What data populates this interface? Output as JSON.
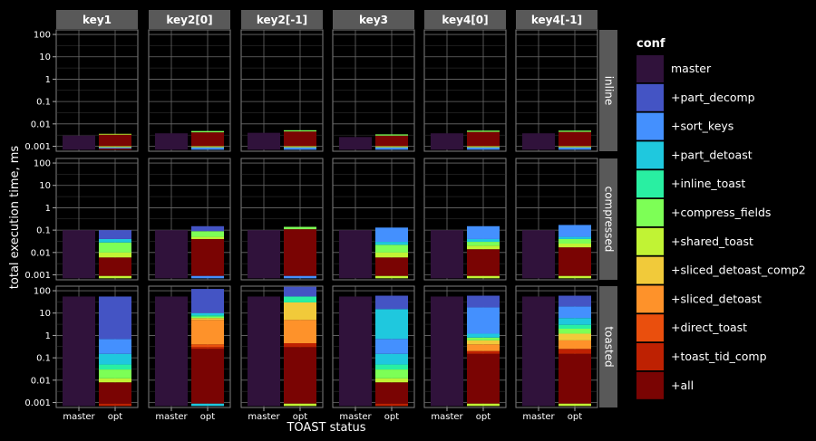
{
  "chart_data": {
    "type": "bar",
    "stacked": true,
    "y_scale": "log10",
    "ylim": [
      0.0006,
      160
    ],
    "ylabel": "total execution time, ms",
    "xlabel": "TOAST status",
    "x_categories": [
      "master",
      "opt"
    ],
    "y_ticks": [
      {
        "value": 100,
        "label": "100"
      },
      {
        "value": 10,
        "label": "10"
      },
      {
        "value": 1,
        "label": "1"
      },
      {
        "value": 0.1,
        "label": "0.1"
      },
      {
        "value": 0.01,
        "label": "0.01"
      },
      {
        "value": 0.001,
        "label": "0.001"
      }
    ],
    "columns": [
      "key1",
      "key2[0]",
      "key2[-1]",
      "key3",
      "key4[0]",
      "key4[-1]"
    ],
    "rows": [
      "inline",
      "compressed",
      "toasted"
    ],
    "legend": {
      "title": "conf",
      "position": "right",
      "items": [
        {
          "name": "master",
          "color": "#30123b"
        },
        {
          "name": "+part_decomp",
          "color": "#4454c4"
        },
        {
          "name": "+sort_keys",
          "color": "#4490fe"
        },
        {
          "name": "+part_detoast",
          "color": "#1fc8de"
        },
        {
          "name": "+inline_toast",
          "color": "#29efa2"
        },
        {
          "name": "+compress_fields",
          "color": "#7dff56"
        },
        {
          "name": "+shared_toast",
          "color": "#c1f334"
        },
        {
          "name": "+sliced_detoast_comp2",
          "color": "#f1ca3a"
        },
        {
          "name": "+sliced_detoast",
          "color": "#fe922a"
        },
        {
          "name": "+direct_toast",
          "color": "#ea4f0d"
        },
        {
          "name": "+toast_tid_comp",
          "color": "#be2102"
        },
        {
          "name": "+all",
          "color": "#7a0403"
        }
      ]
    },
    "base_value": 0.0007,
    "panels": [
      {
        "row": "inline",
        "col": "key1",
        "master_top": 0.003,
        "opt_segments": [
          [
            "+all",
            0.0008
          ],
          [
            "+sort_keys",
            0.0009
          ],
          [
            "+shared_toast",
            0.001
          ],
          [
            "+all",
            0.0033
          ],
          [
            "+shared_toast",
            0.0036
          ]
        ]
      },
      {
        "row": "inline",
        "col": "key2[0]",
        "master_top": 0.0038,
        "opt_segments": [
          [
            "+sort_keys",
            0.0009
          ],
          [
            "+shared_toast",
            0.001
          ],
          [
            "+all",
            0.0042
          ],
          [
            "+compress_fields",
            0.0048
          ]
        ]
      },
      {
        "row": "inline",
        "col": "key2[-1]",
        "master_top": 0.004,
        "opt_segments": [
          [
            "+sort_keys",
            0.0009
          ],
          [
            "+shared_toast",
            0.001
          ],
          [
            "+all",
            0.0046
          ],
          [
            "+compress_fields",
            0.0052
          ]
        ]
      },
      {
        "row": "inline",
        "col": "key3",
        "master_top": 0.0026,
        "opt_segments": [
          [
            "+sort_keys",
            0.0009
          ],
          [
            "+shared_toast",
            0.001
          ],
          [
            "+all",
            0.003
          ],
          [
            "+compress_fields",
            0.0034
          ]
        ]
      },
      {
        "row": "inline",
        "col": "key4[0]",
        "master_top": 0.0038,
        "opt_segments": [
          [
            "+sort_keys",
            0.0009
          ],
          [
            "+shared_toast",
            0.001
          ],
          [
            "+all",
            0.0044
          ],
          [
            "+compress_fields",
            0.005
          ]
        ]
      },
      {
        "row": "inline",
        "col": "key4[-1]",
        "master_top": 0.0038,
        "opt_segments": [
          [
            "+sort_keys",
            0.0009
          ],
          [
            "+shared_toast",
            0.001
          ],
          [
            "+all",
            0.0044
          ],
          [
            "+compress_fields",
            0.005
          ]
        ]
      },
      {
        "row": "compressed",
        "col": "key1",
        "master_top": 0.1,
        "opt_segments": [
          [
            "+shared_toast",
            0.0009
          ],
          [
            "+all",
            0.006
          ],
          [
            "+shared_toast",
            0.01
          ],
          [
            "+compress_fields",
            0.028
          ],
          [
            "+part_detoast",
            0.04
          ],
          [
            "+part_decomp",
            0.1
          ]
        ]
      },
      {
        "row": "compressed",
        "col": "key2[0]",
        "master_top": 0.1,
        "opt_segments": [
          [
            "+sort_keys",
            0.0009
          ],
          [
            "+all",
            0.04
          ],
          [
            "+shared_toast",
            0.05
          ],
          [
            "+compress_fields",
            0.09
          ],
          [
            "+part_decomp",
            0.15
          ]
        ]
      },
      {
        "row": "compressed",
        "col": "key2[-1]",
        "master_top": 0.1,
        "opt_segments": [
          [
            "+sort_keys",
            0.0009
          ],
          [
            "+all",
            0.11
          ],
          [
            "+compress_fields",
            0.14
          ]
        ]
      },
      {
        "row": "compressed",
        "col": "key3",
        "master_top": 0.1,
        "opt_segments": [
          [
            "+shared_toast",
            0.0009
          ],
          [
            "+all",
            0.006
          ],
          [
            "+shared_toast",
            0.01
          ],
          [
            "+compress_fields",
            0.022
          ],
          [
            "+part_detoast",
            0.03
          ],
          [
            "+sort_keys",
            0.13
          ]
        ]
      },
      {
        "row": "compressed",
        "col": "key4[0]",
        "master_top": 0.1,
        "opt_segments": [
          [
            "+shared_toast",
            0.0009
          ],
          [
            "+all",
            0.014
          ],
          [
            "+shared_toast",
            0.02
          ],
          [
            "+compress_fields",
            0.03
          ],
          [
            "+part_detoast",
            0.04
          ],
          [
            "+sort_keys",
            0.15
          ]
        ]
      },
      {
        "row": "compressed",
        "col": "key4[-1]",
        "master_top": 0.1,
        "opt_segments": [
          [
            "+shared_toast",
            0.0009
          ],
          [
            "+all",
            0.017
          ],
          [
            "+shared_toast",
            0.025
          ],
          [
            "+compress_fields",
            0.04
          ],
          [
            "+part_detoast",
            0.05
          ],
          [
            "+sort_keys",
            0.17
          ]
        ]
      },
      {
        "row": "toasted",
        "col": "key1",
        "master_top": 55,
        "opt_segments": [
          [
            "+toast_tid_comp",
            0.0009
          ],
          [
            "+all",
            0.008
          ],
          [
            "+shared_toast",
            0.012
          ],
          [
            "+compress_fields",
            0.03
          ],
          [
            "+inline_toast",
            0.05
          ],
          [
            "+part_detoast",
            0.15
          ],
          [
            "+sort_keys",
            0.7
          ],
          [
            "+part_decomp",
            55
          ]
        ]
      },
      {
        "row": "toasted",
        "col": "key2[0]",
        "master_top": 55,
        "opt_segments": [
          [
            "+part_detoast",
            0.0009
          ],
          [
            "+all",
            0.25
          ],
          [
            "+toast_tid_comp",
            0.3
          ],
          [
            "+direct_toast",
            0.4
          ],
          [
            "+sliced_detoast",
            5
          ],
          [
            "+sliced_detoast_comp2",
            6
          ],
          [
            "+compress_fields",
            7
          ],
          [
            "+inline_toast",
            8
          ],
          [
            "+part_detoast",
            10
          ],
          [
            "+part_decomp",
            120
          ]
        ]
      },
      {
        "row": "toasted",
        "col": "key2[-1]",
        "master_top": 55,
        "opt_segments": [
          [
            "+shared_toast",
            0.0009
          ],
          [
            "+all",
            0.3
          ],
          [
            "+toast_tid_comp",
            0.45
          ],
          [
            "+sliced_detoast",
            5
          ],
          [
            "+sliced_detoast_comp2",
            30
          ],
          [
            "+inline_toast",
            55
          ],
          [
            "+part_decomp",
            150
          ]
        ]
      },
      {
        "row": "toasted",
        "col": "key3",
        "master_top": 55,
        "opt_segments": [
          [
            "+toast_tid_comp",
            0.0009
          ],
          [
            "+all",
            0.008
          ],
          [
            "+shared_toast",
            0.012
          ],
          [
            "+compress_fields",
            0.03
          ],
          [
            "+inline_toast",
            0.05
          ],
          [
            "+part_detoast",
            0.15
          ],
          [
            "+sort_keys",
            0.7
          ],
          [
            "+part_detoast",
            15
          ],
          [
            "+part_decomp",
            60
          ]
        ]
      },
      {
        "row": "toasted",
        "col": "key4[0]",
        "master_top": 55,
        "opt_segments": [
          [
            "+shared_toast",
            0.0009
          ],
          [
            "+all",
            0.15
          ],
          [
            "+toast_tid_comp",
            0.2
          ],
          [
            "+sliced_detoast",
            0.4
          ],
          [
            "+sliced_detoast_comp2",
            0.6
          ],
          [
            "+compress_fields",
            0.8
          ],
          [
            "+part_detoast",
            1.2
          ],
          [
            "+sort_keys",
            18
          ],
          [
            "+part_decomp",
            60
          ]
        ]
      },
      {
        "row": "toasted",
        "col": "key4[-1]",
        "master_top": 55,
        "opt_segments": [
          [
            "+shared_toast",
            0.0009
          ],
          [
            "+all",
            0.15
          ],
          [
            "+toast_tid_comp",
            0.25
          ],
          [
            "+sliced_detoast",
            0.6
          ],
          [
            "+sliced_detoast_comp2",
            1.2
          ],
          [
            "+compress_fields",
            2
          ],
          [
            "+inline_toast",
            3
          ],
          [
            "+part_detoast",
            6
          ],
          [
            "+sort_keys",
            20
          ],
          [
            "+part_decomp",
            60
          ]
        ]
      }
    ]
  }
}
